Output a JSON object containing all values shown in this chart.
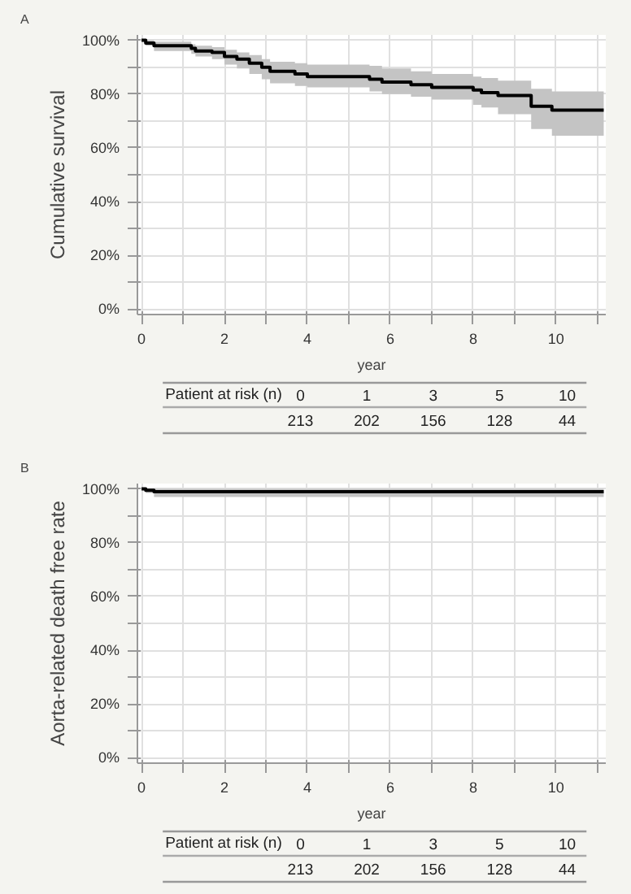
{
  "chart_data": [
    {
      "type": "step",
      "title": "A",
      "xlabel": "year",
      "ylabel": "Cumulative survival",
      "xlim": [
        -0.1,
        11.2
      ],
      "ylim": [
        -2,
        102
      ],
      "xticks": [
        0,
        {
          "value": 1,
          "label": null
        },
        2,
        {
          "value": 3,
          "label": null
        },
        4,
        {
          "value": 5,
          "label": null
        },
        6,
        {
          "value": 7,
          "label": null
        },
        8,
        {
          "value": 9,
          "label": null
        },
        10,
        {
          "value": 11,
          "label": null
        }
      ],
      "yticks": [
        {
          "value": 0,
          "label": "0%"
        },
        {
          "value": 10,
          "label": null
        },
        {
          "value": 20,
          "label": "20%"
        },
        {
          "value": 30,
          "label": null
        },
        {
          "value": 40,
          "label": "40%"
        },
        {
          "value": 50,
          "label": null
        },
        {
          "value": 60,
          "label": "60%"
        },
        {
          "value": 70,
          "label": null
        },
        {
          "value": 80,
          "label": "80%"
        },
        {
          "value": 90,
          "label": null
        },
        {
          "value": 100,
          "label": "100%"
        }
      ],
      "grid": true,
      "series": [
        {
          "color": "#000000",
          "x": [
            0,
            0.1,
            0.3,
            1.2,
            1.3,
            1.7,
            2.0,
            2.3,
            2.6,
            2.9,
            3.1,
            3.7,
            4.0,
            5.5,
            5.8,
            6.5,
            7.0,
            8.0,
            8.2,
            8.6,
            9.4,
            9.9,
            11.15
          ],
          "values": [
            100,
            99,
            98,
            97,
            96,
            95.5,
            94,
            93,
            91.5,
            90,
            88.5,
            87.5,
            86.5,
            85.5,
            84.5,
            83.5,
            82.5,
            81.5,
            80.5,
            79.5,
            75.5,
            74,
            74
          ],
          "lower": [
            100,
            98,
            96,
            95,
            94,
            93,
            91,
            89.5,
            87.5,
            85.5,
            84,
            83,
            82.5,
            81,
            80,
            79,
            78,
            76,
            75,
            72.5,
            67,
            64.5,
            64.5
          ],
          "upper": [
            100,
            100,
            99.5,
            98.5,
            98,
            97.5,
            96.5,
            95.5,
            94.5,
            93,
            92,
            91.5,
            91,
            90.5,
            89.5,
            88.5,
            87.5,
            86.5,
            86,
            85,
            82,
            81,
            81
          ]
        }
      ],
      "annotations": [
        "Patient at risk (n)",
        "0",
        "1",
        "3",
        "5",
        "10",
        "213",
        "202",
        "156",
        "128",
        "44"
      ]
    },
    {
      "type": "step",
      "title": "B",
      "xlabel": "year",
      "ylabel": "Aorta-related death free rate",
      "xlim": [
        -0.1,
        11.2
      ],
      "ylim": [
        -2,
        102
      ],
      "xticks": [
        0,
        {
          "value": 1,
          "label": null
        },
        2,
        {
          "value": 3,
          "label": null
        },
        4,
        {
          "value": 5,
          "label": null
        },
        6,
        {
          "value": 7,
          "label": null
        },
        8,
        {
          "value": 9,
          "label": null
        },
        10,
        {
          "value": 11,
          "label": null
        }
      ],
      "yticks": [
        {
          "value": 0,
          "label": "0%"
        },
        {
          "value": 10,
          "label": null
        },
        {
          "value": 20,
          "label": "20%"
        },
        {
          "value": 30,
          "label": null
        },
        {
          "value": 40,
          "label": "40%"
        },
        {
          "value": 50,
          "label": null
        },
        {
          "value": 60,
          "label": "60%"
        },
        {
          "value": 70,
          "label": null
        },
        {
          "value": 80,
          "label": "80%"
        },
        {
          "value": 90,
          "label": null
        },
        {
          "value": 100,
          "label": "100%"
        }
      ],
      "grid": true,
      "series": [
        {
          "color": "#000000",
          "x": [
            0,
            0.1,
            0.3,
            11.15
          ],
          "values": [
            100,
            99.5,
            99,
            99
          ],
          "lower": [
            100,
            98.5,
            97,
            97
          ],
          "upper": [
            100,
            100,
            100,
            100
          ]
        }
      ],
      "annotations": [
        "Patient at risk (n)",
        "0",
        "1",
        "3",
        "5",
        "10",
        "213",
        "202",
        "156",
        "128",
        "44"
      ]
    }
  ]
}
